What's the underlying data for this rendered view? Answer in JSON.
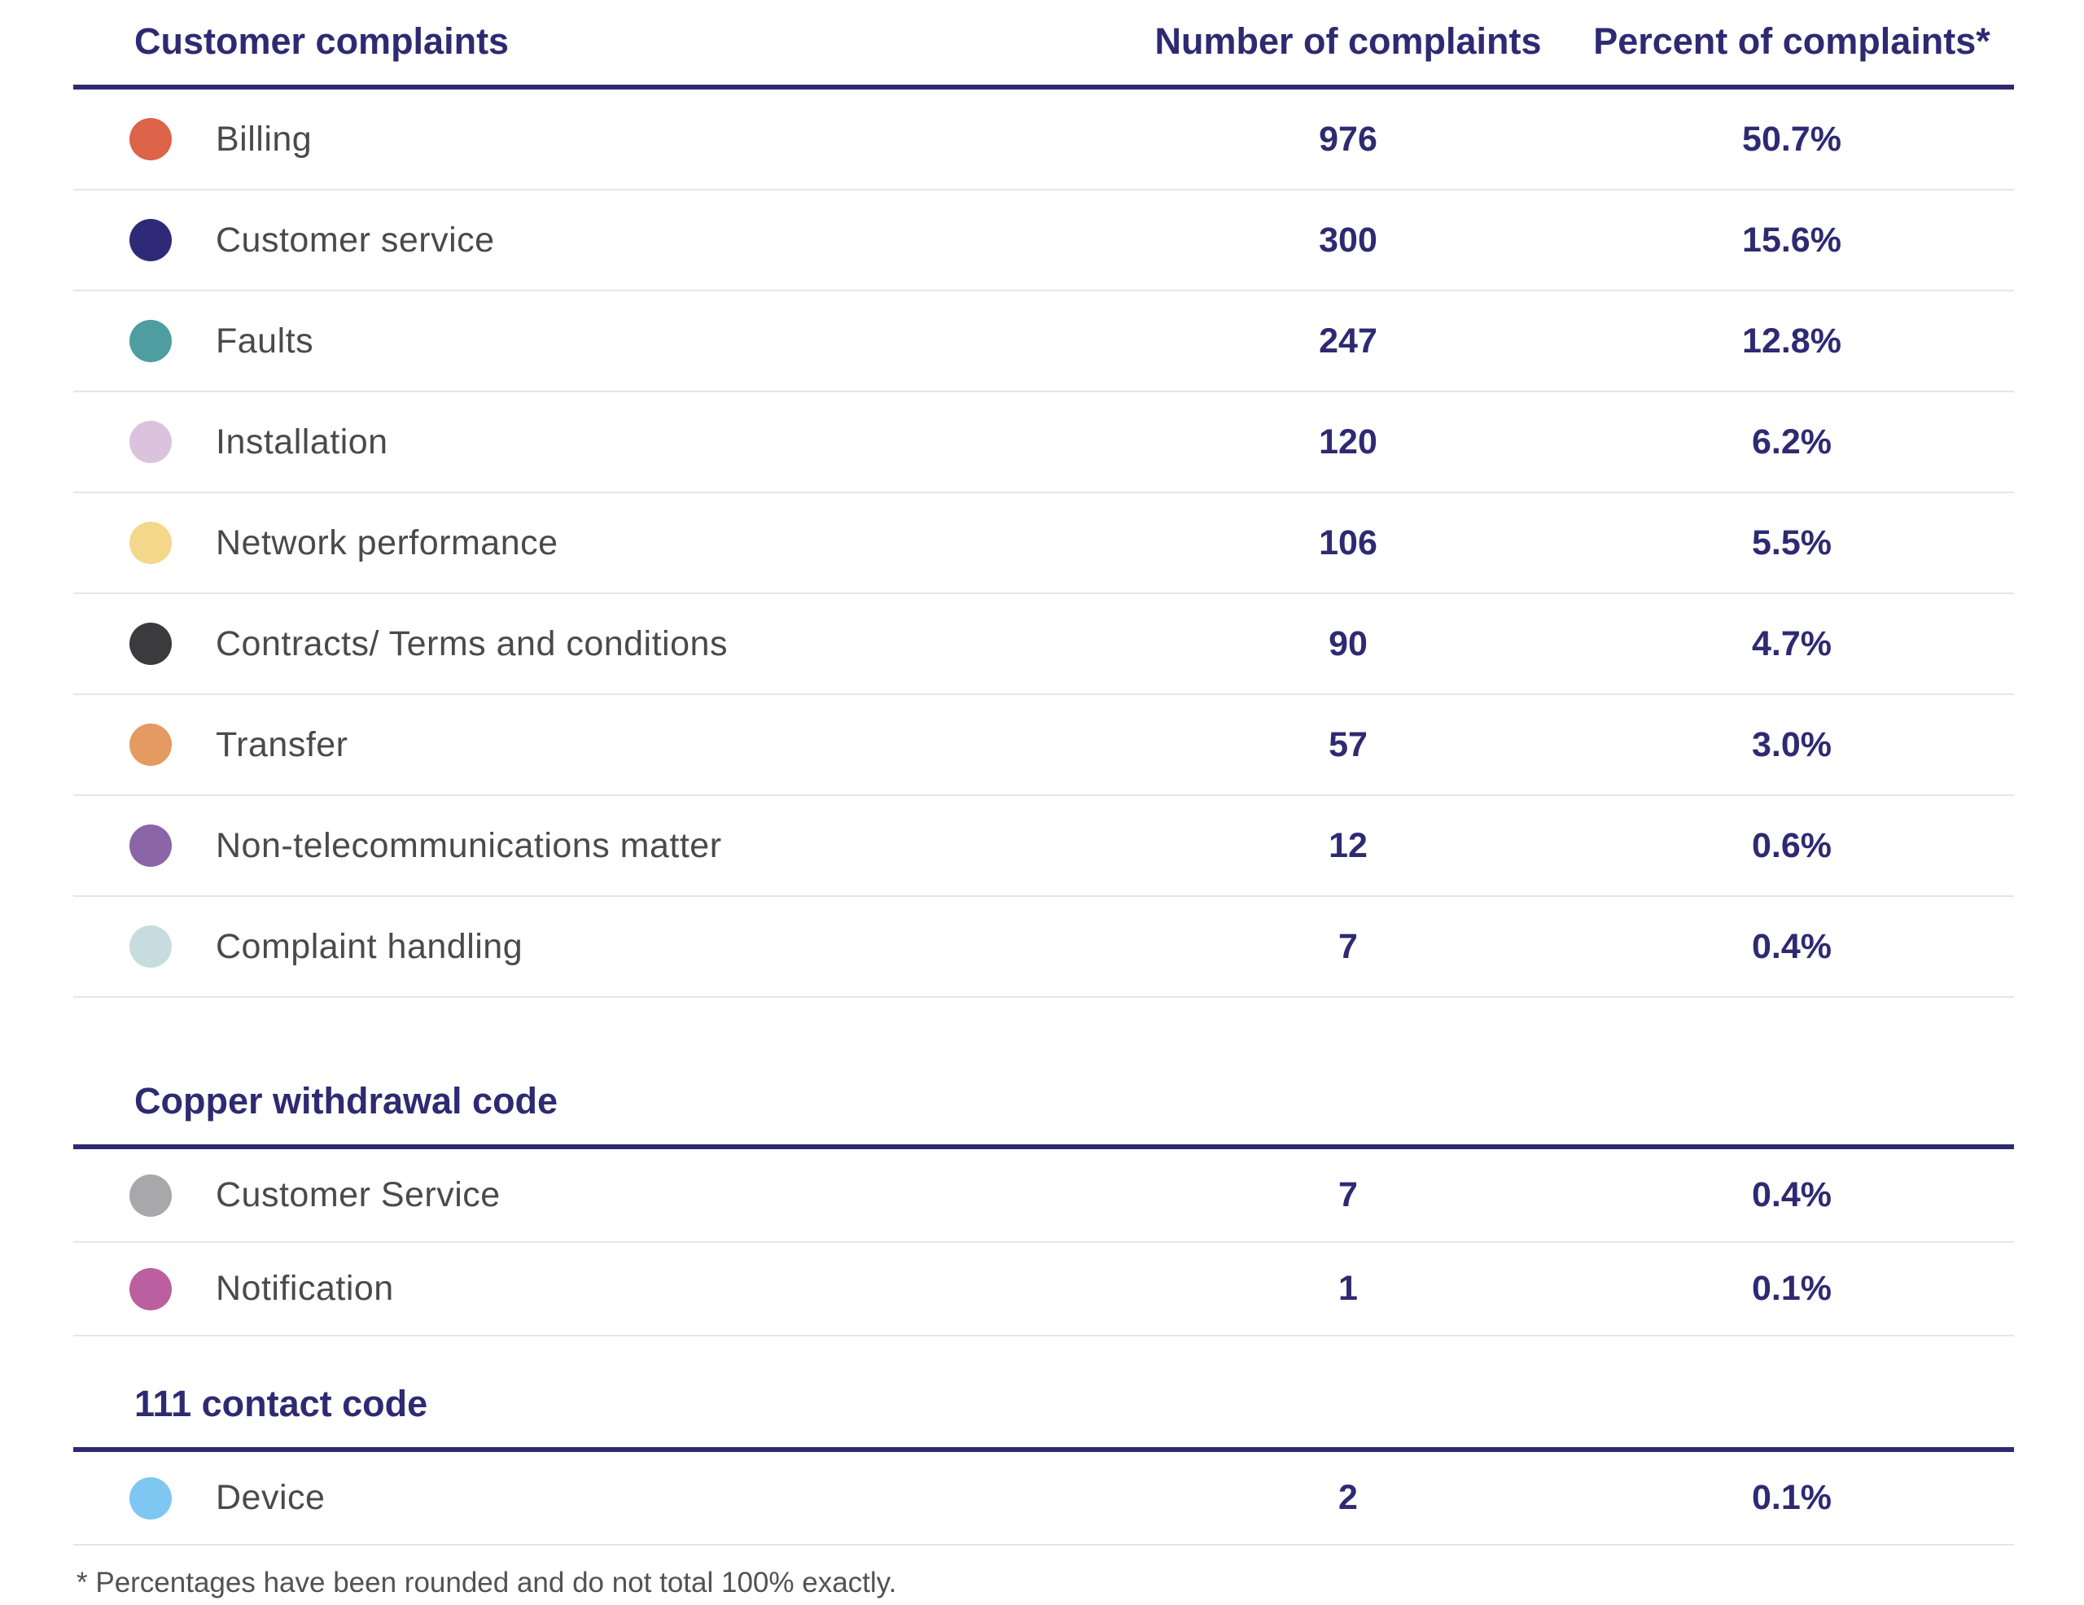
{
  "table": {
    "columns": [
      "Customer complaints",
      "Number of complaints",
      "Percent of complaints*"
    ],
    "sections": [
      {
        "rows": [
          {
            "label": "Billing",
            "dot_color": "#dd6349",
            "count": "976",
            "percent": "50.7%"
          },
          {
            "label": "Customer service",
            "dot_color": "#2f2a78",
            "count": "300",
            "percent": "15.6%"
          },
          {
            "label": "Faults",
            "dot_color": "#4d9da1",
            "count": "247",
            "percent": "12.8%"
          },
          {
            "label": "Installation",
            "dot_color": "#dcc3dd",
            "count": "120",
            "percent": "6.2%"
          },
          {
            "label": "Network performance",
            "dot_color": "#f5d78b",
            "count": "106",
            "percent": "5.5%"
          },
          {
            "label": "Contracts/ Terms and conditions",
            "dot_color": "#3b3b3d",
            "count": "90",
            "percent": "4.7%"
          },
          {
            "label": "Transfer",
            "dot_color": "#e49a61",
            "count": "57",
            "percent": "3.0%"
          },
          {
            "label": "Non-telecommunications matter",
            "dot_color": "#8b65a7",
            "count": "12",
            "percent": "0.6%"
          },
          {
            "label": "Complaint handling",
            "dot_color": "#c6dcdf",
            "count": "7",
            "percent": "0.4%"
          }
        ]
      },
      {
        "title": "Copper withdrawal code",
        "rows": [
          {
            "label": "Customer Service",
            "dot_color": "#a8a8aa",
            "count": "7",
            "percent": "0.4%"
          },
          {
            "label": "Notification",
            "dot_color": "#bb5fa0",
            "count": "1",
            "percent": "0.1%"
          }
        ]
      },
      {
        "title": "111 contact code",
        "rows": [
          {
            "label": "Device",
            "dot_color": "#7dc7f2",
            "count": "2",
            "percent": "0.1%"
          }
        ]
      }
    ]
  },
  "footnote": "* Percentages have been rounded and do not total 100% exactly.",
  "colors": {
    "navy": "#2e2a72",
    "row_label_text": "#4a4a4c",
    "separator": "#e5e5eb",
    "footnote_text": "#515256"
  },
  "chart_data": {
    "type": "table",
    "title": "Customer complaints",
    "columns": [
      "Customer complaints",
      "Number of complaints",
      "Percent of complaints*"
    ],
    "sections": [
      {
        "name": "Customer complaints",
        "rows": [
          [
            "Billing",
            976,
            "50.7%"
          ],
          [
            "Customer service",
            300,
            "15.6%"
          ],
          [
            "Faults",
            247,
            "12.8%"
          ],
          [
            "Installation",
            120,
            "6.2%"
          ],
          [
            "Network performance",
            106,
            "5.5%"
          ],
          [
            "Contracts/ Terms and conditions",
            90,
            "4.7%"
          ],
          [
            "Transfer",
            57,
            "3.0%"
          ],
          [
            "Non-telecommunications matter",
            12,
            "0.6%"
          ],
          [
            "Complaint handling",
            7,
            "0.4%"
          ]
        ]
      },
      {
        "name": "Copper withdrawal code",
        "rows": [
          [
            "Customer Service",
            7,
            "0.4%"
          ],
          [
            "Notification",
            1,
            "0.1%"
          ]
        ]
      },
      {
        "name": "111 contact code",
        "rows": [
          [
            "Device",
            2,
            "0.1%"
          ]
        ]
      }
    ],
    "footnote": "* Percentages have been rounded and do not total 100% exactly."
  }
}
